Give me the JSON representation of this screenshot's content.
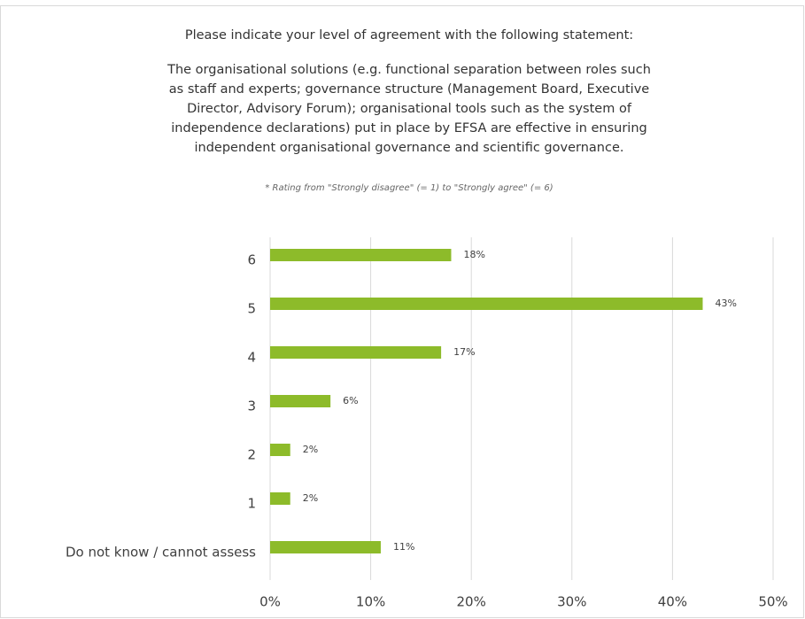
{
  "chart_data": {
    "type": "bar",
    "orientation": "horizontal",
    "title": "Please indicate your level of agreement with the following statement:",
    "statement": [
      "The organisational solutions (e.g. functional separation between roles such",
      "as staff and experts; governance structure (Management Board, Executive",
      "Director, Advisory Forum); organisational tools such as the system of",
      "independence declarations) put in place by EFSA are effective in ensuring",
      "independent organisational governance and scientific governance."
    ],
    "subtitle": "* Rating from \"Strongly disagree\" (= 1) to \"Strongly agree\" (= 6)",
    "categories": [
      "6",
      "5",
      "4",
      "3",
      "2",
      "1",
      "Do not know / cannot assess"
    ],
    "values": [
      18,
      43,
      17,
      6,
      2,
      2,
      11
    ],
    "value_labels": [
      "18%",
      "43%",
      "17%",
      "6%",
      "2%",
      "2%",
      "11%"
    ],
    "color": "#8dbb2a",
    "xlim": [
      0,
      50
    ],
    "xticks": [
      {
        "value": 0,
        "label": "0%"
      },
      {
        "value": 10,
        "label": "10%"
      },
      {
        "value": 20,
        "label": "20%"
      },
      {
        "value": 30,
        "label": "30%"
      },
      {
        "value": 40,
        "label": "40%"
      },
      {
        "value": 50,
        "label": "50%"
      }
    ],
    "grid": true
  }
}
